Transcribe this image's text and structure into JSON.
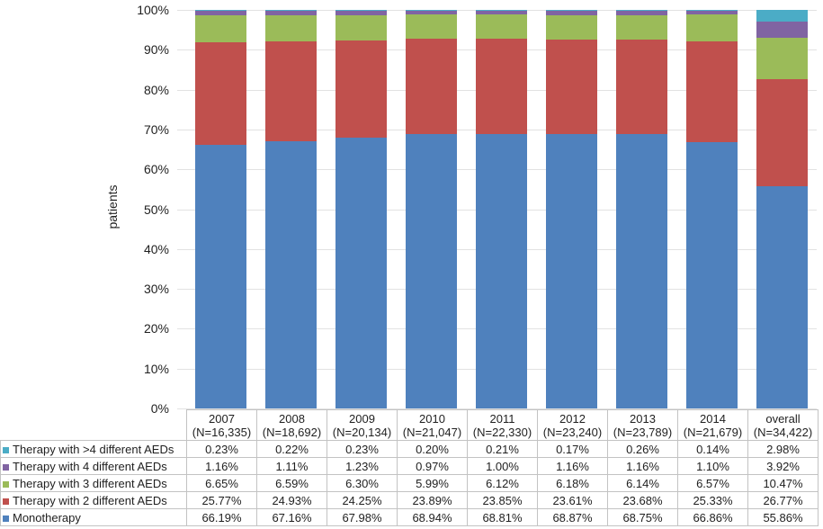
{
  "chart_data": {
    "type": "bar",
    "stacked": true,
    "orientation": "vertical",
    "title": "",
    "xlabel": "",
    "ylabel": "patients",
    "ylim": [
      0,
      100
    ],
    "y_tick_step": 10,
    "y_tick_suffix": "%",
    "grid": "horizontal",
    "legend_position": "data-table-left",
    "categories": [
      {
        "label": "2007",
        "n_label": "(N=16,335)"
      },
      {
        "label": "2008",
        "n_label": "(N=18,692)"
      },
      {
        "label": "2009",
        "n_label": "(N=20,134)"
      },
      {
        "label": "2010",
        "n_label": "(N=21,047)"
      },
      {
        "label": "2011",
        "n_label": "(N=22,330)"
      },
      {
        "label": "2012",
        "n_label": "(N=23,240)"
      },
      {
        "label": "2013",
        "n_label": "(N=23,789)"
      },
      {
        "label": "2014",
        "n_label": "(N=21,679)"
      },
      {
        "label": "overall",
        "n_label": "(N=34,422)"
      }
    ],
    "series": [
      {
        "name": "Therapy with >4 different AEDs",
        "color": "#4BACC6",
        "values": [
          0.23,
          0.22,
          0.23,
          0.2,
          0.21,
          0.17,
          0.26,
          0.14,
          2.98
        ]
      },
      {
        "name": "Therapy with 4 different AEDs",
        "color": "#8064A2",
        "values": [
          1.16,
          1.11,
          1.23,
          0.97,
          1.0,
          1.16,
          1.16,
          1.1,
          3.92
        ]
      },
      {
        "name": "Therapy with 3 different AEDs",
        "color": "#9BBB59",
        "values": [
          6.65,
          6.59,
          6.3,
          5.99,
          6.12,
          6.18,
          6.14,
          6.57,
          10.47
        ]
      },
      {
        "name": "Therapy with 2 different AEDs",
        "color": "#C0504D",
        "values": [
          25.77,
          24.93,
          24.25,
          23.89,
          23.85,
          23.61,
          23.68,
          25.33,
          26.77
        ]
      },
      {
        "name": "Monotherapy",
        "color": "#4F81BD",
        "values": [
          66.19,
          67.16,
          67.98,
          68.94,
          68.81,
          68.87,
          68.75,
          66.86,
          55.86
        ]
      }
    ]
  }
}
